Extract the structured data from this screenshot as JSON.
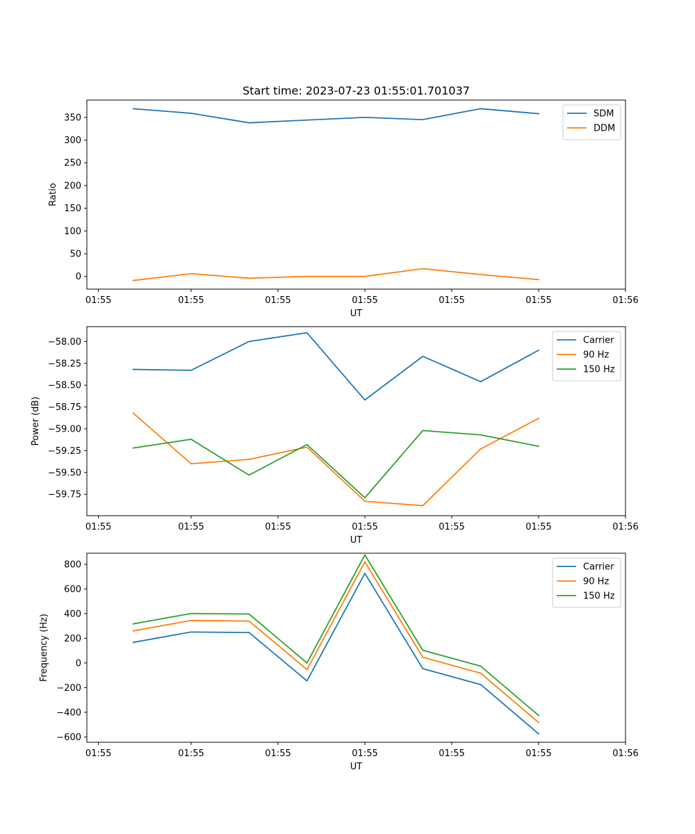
{
  "figure": {
    "title": "Start time: 2023-07-23 01:55:01.701037"
  },
  "chart_data": [
    {
      "type": "line",
      "title": "Start time: 2023-07-23 01:55:01.701037",
      "xlabel": "UT",
      "ylabel": "Ratio",
      "x": [
        1,
        2,
        3,
        4,
        5,
        6,
        7,
        8
      ],
      "xlim": [
        0.2,
        9.5
      ],
      "xticks": [
        0.4,
        2.0,
        3.5,
        5.0,
        6.5,
        8.0,
        9.5
      ],
      "xtick_labels": [
        "01:55",
        "01:55",
        "01:55",
        "01:55",
        "01:55",
        "01:55",
        "01:56"
      ],
      "ylim": [
        -28,
        388
      ],
      "yticks": [
        0,
        50,
        100,
        150,
        200,
        250,
        300,
        350
      ],
      "ytick_labels": [
        "0",
        "50",
        "100",
        "150",
        "200",
        "250",
        "300",
        "350"
      ],
      "legend_position": "top-right",
      "series": [
        {
          "name": "SDM",
          "color": "#1f77b4",
          "values": [
            369,
            359,
            338,
            344,
            350,
            345,
            369,
            358
          ]
        },
        {
          "name": "DDM",
          "color": "#ff7f0e",
          "values": [
            -9,
            6,
            -4,
            0,
            0,
            17,
            4,
            -7
          ]
        }
      ]
    },
    {
      "type": "line",
      "title": "",
      "xlabel": "UT",
      "ylabel": "Power (dB)",
      "x": [
        1,
        2,
        3,
        4,
        5,
        6,
        7,
        8
      ],
      "xlim": [
        0.2,
        9.5
      ],
      "xticks": [
        0.4,
        2.0,
        3.5,
        5.0,
        6.5,
        8.0,
        9.5
      ],
      "xtick_labels": [
        "01:55",
        "01:55",
        "01:55",
        "01:55",
        "01:55",
        "01:55",
        "01:56"
      ],
      "ylim": [
        -59.995,
        -57.83
      ],
      "yticks": [
        -59.75,
        -59.5,
        -59.25,
        -59.0,
        -58.75,
        -58.5,
        -58.25,
        -58.0
      ],
      "ytick_labels": [
        "−59.75",
        "−59.50",
        "−59.25",
        "−59.00",
        "−58.75",
        "−58.50",
        "−58.25",
        "−58.00"
      ],
      "legend_position": "top-right",
      "series": [
        {
          "name": "Carrier",
          "color": "#1f77b4",
          "values": [
            -58.32,
            -58.33,
            -58.0,
            -57.9,
            -58.67,
            -58.17,
            -58.46,
            -58.1
          ]
        },
        {
          "name": "90 Hz",
          "color": "#ff7f0e",
          "values": [
            -58.82,
            -59.4,
            -59.35,
            -59.21,
            -59.83,
            -59.88,
            -59.23,
            -58.88
          ]
        },
        {
          "name": "150 Hz",
          "color": "#2ca02c",
          "values": [
            -59.22,
            -59.12,
            -59.53,
            -59.18,
            -59.79,
            -59.02,
            -59.07,
            -59.2
          ]
        }
      ]
    },
    {
      "type": "line",
      "title": "",
      "xlabel": "UT",
      "ylabel": "Frequency (Hz)",
      "x": [
        1,
        2,
        3,
        4,
        5,
        6,
        7,
        8
      ],
      "xlim": [
        0.2,
        9.5
      ],
      "xticks": [
        0.4,
        2.0,
        3.5,
        5.0,
        6.5,
        8.0,
        9.5
      ],
      "xtick_labels": [
        "01:55",
        "01:55",
        "01:55",
        "01:55",
        "01:55",
        "01:55",
        "01:56"
      ],
      "ylim": [
        -643,
        890
      ],
      "yticks": [
        -600,
        -400,
        -200,
        0,
        200,
        400,
        600,
        800
      ],
      "ytick_labels": [
        "−600",
        "−400",
        "−200",
        "0",
        "200",
        "400",
        "600",
        "800"
      ],
      "legend_position": "top-right",
      "series": [
        {
          "name": "Carrier",
          "color": "#1f77b4",
          "values": [
            167,
            251,
            247,
            -145,
            727,
            -46,
            -175,
            -575
          ]
        },
        {
          "name": "90 Hz",
          "color": "#ff7f0e",
          "values": [
            260,
            345,
            340,
            -54,
            820,
            46,
            -83,
            -483
          ]
        },
        {
          "name": "150 Hz",
          "color": "#2ca02c",
          "values": [
            317,
            401,
            397,
            0,
            876,
            103,
            -26,
            -426
          ]
        }
      ]
    }
  ]
}
